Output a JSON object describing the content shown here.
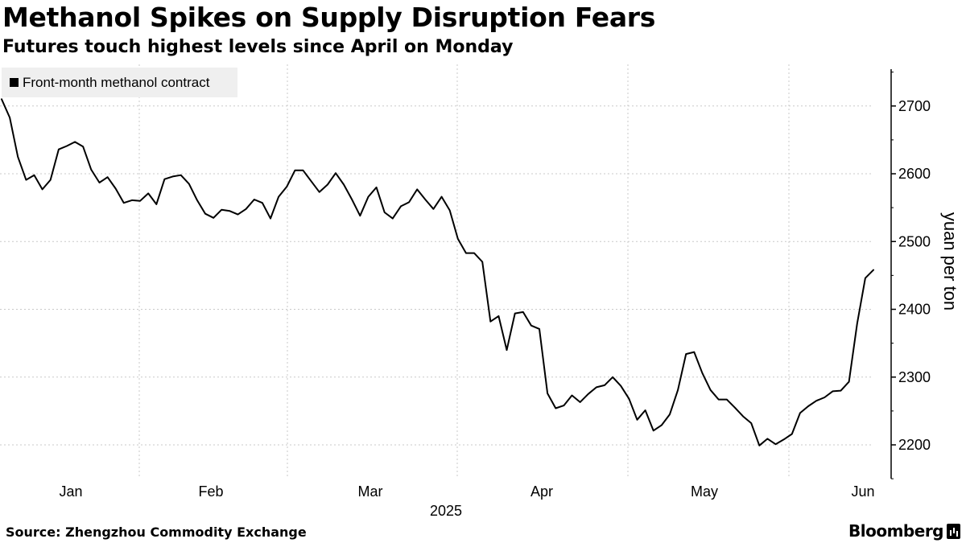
{
  "chart_data": {
    "type": "line",
    "title": "Methanol Spikes on Supply Disruption Fears",
    "subtitle": "Futures touch highest levels since April on Monday",
    "ylabel": "yuan per ton",
    "xlabel": "2025",
    "ylim": [
      2150,
      2760
    ],
    "yticks": [
      2200,
      2300,
      2400,
      2500,
      2600,
      2700
    ],
    "xtick_labels": [
      "Jan",
      "Feb",
      "Mar",
      "Apr",
      "May",
      "Jun"
    ],
    "legend": "top-left",
    "series": [
      {
        "name": "Front-month methanol contract",
        "color": "#000000",
        "values": [
          2710,
          2683,
          2625,
          2591,
          2598,
          2577,
          2591,
          2636,
          2641,
          2647,
          2640,
          2606,
          2587,
          2595,
          2578,
          2557,
          2561,
          2560,
          2571,
          2555,
          2592,
          2596,
          2598,
          2585,
          2561,
          2541,
          2535,
          2547,
          2545,
          2540,
          2548,
          2562,
          2557,
          2534,
          2566,
          2581,
          2605,
          2605,
          2589,
          2573,
          2584,
          2601,
          2584,
          2562,
          2538,
          2566,
          2580,
          2543,
          2534,
          2552,
          2558,
          2577,
          2562,
          2548,
          2566,
          2546,
          2504,
          2483,
          2483,
          2470,
          2382,
          2390,
          2340,
          2394,
          2396,
          2376,
          2371,
          2276,
          2254,
          2258,
          2273,
          2263,
          2275,
          2285,
          2288,
          2300,
          2287,
          2268,
          2237,
          2251,
          2221,
          2229,
          2245,
          2281,
          2334,
          2337,
          2306,
          2281,
          2267,
          2267,
          2255,
          2242,
          2232,
          2199,
          2209,
          2201,
          2208,
          2216,
          2247,
          2257,
          2265,
          2270,
          2279,
          2280,
          2293,
          2379,
          2446,
          2458
        ]
      }
    ]
  },
  "source": "Source: Zhengzhou Commodity Exchange",
  "brand": "Bloomberg"
}
